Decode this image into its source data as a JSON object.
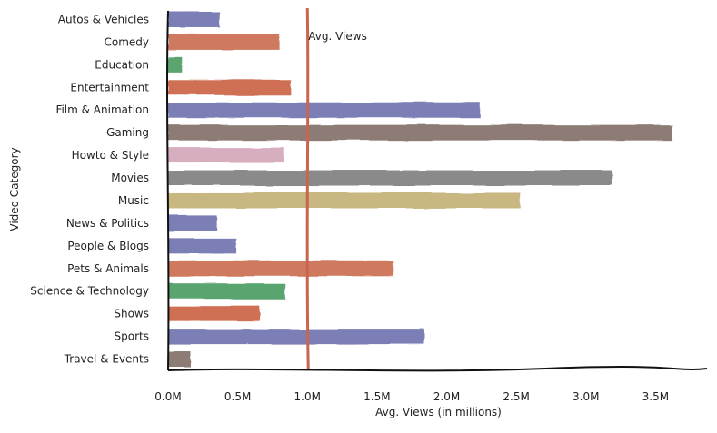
{
  "chart_data": {
    "type": "bar",
    "orientation": "horizontal",
    "xlabel": "Avg. Views (in millions)",
    "ylabel": "Video Category",
    "xlim": [
      0,
      3.7
    ],
    "x_ticks": [
      0,
      0.5,
      1.0,
      1.5,
      2.0,
      2.5,
      3.0,
      3.5
    ],
    "x_tick_labels": [
      "0.0M",
      "0.5M",
      "1.0M",
      "1.5M",
      "2.0M",
      "2.5M",
      "3.0M",
      "3.5M"
    ],
    "grid": false,
    "categories": [
      "Autos & Vehicles",
      "Comedy",
      "Education",
      "Entertainment",
      "Film & Animation",
      "Gaming",
      "Howto & Style",
      "Movies",
      "Music",
      "News & Politics",
      "People & Blogs",
      "Pets & Animals",
      "Science & Technology",
      "Shows",
      "Sports",
      "Travel & Events"
    ],
    "values": [
      0.37,
      0.8,
      0.1,
      0.88,
      2.24,
      3.62,
      0.83,
      3.19,
      2.53,
      0.35,
      0.49,
      1.62,
      0.84,
      0.66,
      1.84,
      0.16
    ],
    "colors": [
      "#7b7fb5",
      "#cf7a5e",
      "#5aa46f",
      "#cf6f55",
      "#7b7fb5",
      "#8c7b74",
      "#d7aebf",
      "#8a8a8a",
      "#c9b781",
      "#7b7fb5",
      "#7b7fb5",
      "#cf7a5e",
      "#5aa46f",
      "#cf6f55",
      "#7b7fb5",
      "#8c7b74"
    ],
    "reference_line": {
      "value": 1.0,
      "label": "Avg. Views",
      "color": "#c9654f"
    }
  }
}
